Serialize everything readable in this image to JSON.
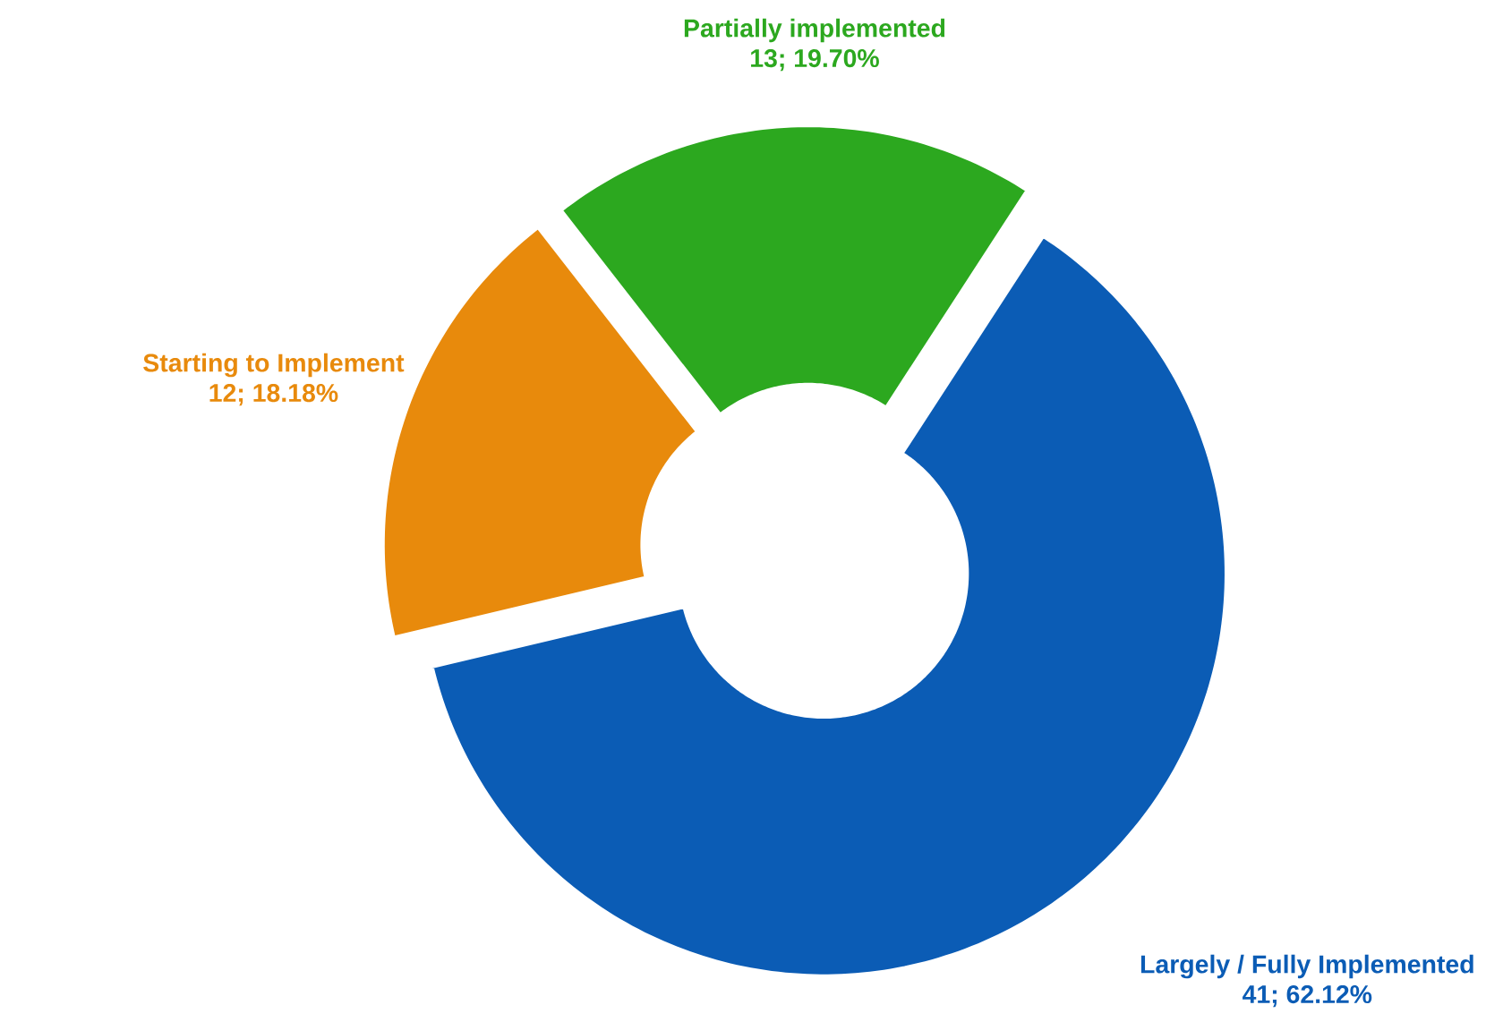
{
  "chart_data": {
    "type": "donut",
    "categories": [
      "Largely / Fully  Implemented",
      "Starting to Implement",
      "Partially implemented"
    ],
    "values": [
      41,
      12,
      13
    ],
    "colors": [
      "#0b5cb5",
      "#e88a0c",
      "#2ca81f"
    ],
    "value_labels": [
      "41; 62.12%",
      "12; 18.18%",
      "13; 19.70%"
    ]
  }
}
